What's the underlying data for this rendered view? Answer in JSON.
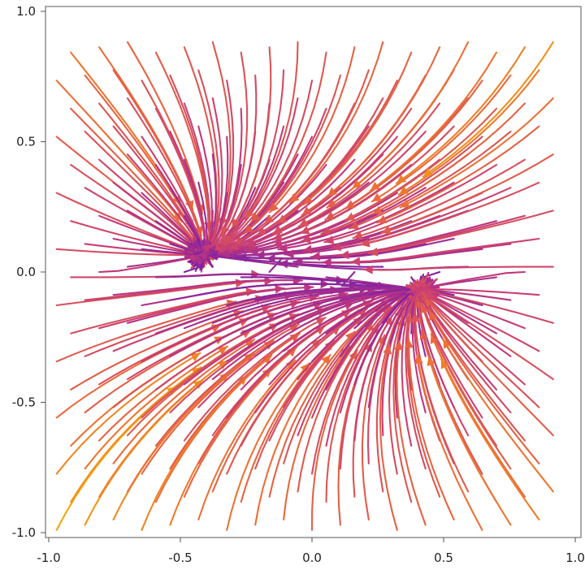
{
  "chart_data": {
    "type": "streamplot",
    "title": "",
    "xlabel": "",
    "ylabel": "",
    "xlim": [
      -1.0,
      1.0
    ],
    "ylim": [
      -1.0,
      1.0
    ],
    "x_ticks": [
      -1.0,
      -0.5,
      0.0,
      0.5,
      1.0
    ],
    "y_ticks": [
      -1.0,
      -0.5,
      0.0,
      0.5,
      1.0
    ],
    "x_tick_labels": [
      "-1.0",
      "-0.5",
      "0.0",
      "0.5",
      "1.0"
    ],
    "y_tick_labels": [
      "-1.0",
      "-0.5",
      "0.0",
      "0.5",
      "1.0"
    ],
    "grid": false,
    "sinks": [
      [
        -0.43,
        0.07
      ],
      [
        0.43,
        -0.07
      ]
    ],
    "color_scale": {
      "name": "magnitude",
      "low": "#1a1ac8",
      "mid_low": "#7a1fa8",
      "mid": "#c63a78",
      "mid_high": "#ec6a3a",
      "high": "#f5b400"
    }
  }
}
